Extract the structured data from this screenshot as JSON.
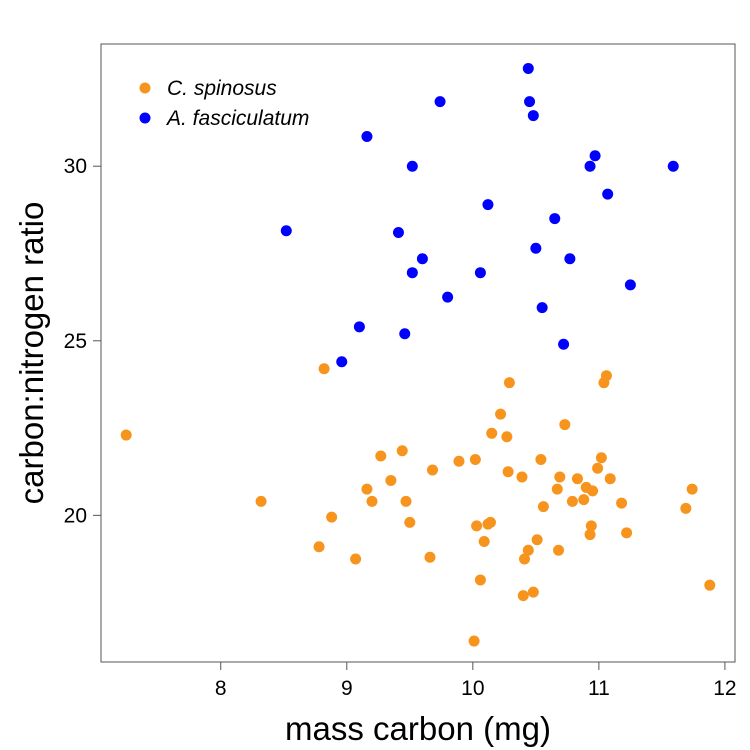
{
  "chart_data": {
    "type": "scatter",
    "title": "",
    "xlabel": "mass carbon (mg)",
    "ylabel": "carbon:nitrogen ratio",
    "xlim": [
      7.05,
      12.08
    ],
    "ylim": [
      15.8,
      33.5
    ],
    "xticks": [
      8,
      9,
      10,
      11,
      12
    ],
    "yticks": [
      20,
      25,
      30
    ],
    "grid": false,
    "legend_position": "top-left",
    "series": [
      {
        "name": "C. spinosus",
        "color": "#F7941D",
        "points": [
          [
            7.25,
            22.3
          ],
          [
            8.32,
            20.4
          ],
          [
            8.78,
            19.1
          ],
          [
            8.82,
            24.2
          ],
          [
            8.88,
            19.95
          ],
          [
            9.07,
            18.75
          ],
          [
            9.16,
            20.75
          ],
          [
            9.2,
            20.4
          ],
          [
            9.27,
            21.7
          ],
          [
            9.35,
            21.0
          ],
          [
            9.44,
            21.85
          ],
          [
            9.47,
            20.4
          ],
          [
            9.5,
            19.8
          ],
          [
            9.66,
            18.8
          ],
          [
            9.68,
            21.3
          ],
          [
            9.89,
            21.55
          ],
          [
            10.01,
            16.4
          ],
          [
            10.02,
            21.6
          ],
          [
            10.03,
            19.7
          ],
          [
            10.06,
            18.15
          ],
          [
            10.09,
            19.25
          ],
          [
            10.12,
            19.75
          ],
          [
            10.14,
            19.8
          ],
          [
            10.15,
            22.35
          ],
          [
            10.22,
            22.9
          ],
          [
            10.27,
            22.25
          ],
          [
            10.28,
            21.25
          ],
          [
            10.29,
            23.8
          ],
          [
            10.39,
            21.1
          ],
          [
            10.4,
            17.7
          ],
          [
            10.41,
            18.75
          ],
          [
            10.44,
            19.0
          ],
          [
            10.48,
            17.8
          ],
          [
            10.51,
            19.3
          ],
          [
            10.54,
            21.6
          ],
          [
            10.56,
            20.25
          ],
          [
            10.67,
            20.75
          ],
          [
            10.68,
            19.0
          ],
          [
            10.69,
            21.1
          ],
          [
            10.73,
            22.6
          ],
          [
            10.79,
            20.4
          ],
          [
            10.83,
            21.05
          ],
          [
            10.88,
            20.45
          ],
          [
            10.9,
            20.8
          ],
          [
            10.93,
            19.45
          ],
          [
            10.94,
            19.7
          ],
          [
            10.95,
            20.7
          ],
          [
            10.99,
            21.35
          ],
          [
            11.02,
            21.65
          ],
          [
            11.04,
            23.8
          ],
          [
            11.06,
            24.0
          ],
          [
            11.09,
            21.05
          ],
          [
            11.18,
            20.35
          ],
          [
            11.22,
            19.5
          ],
          [
            11.69,
            20.2
          ],
          [
            11.74,
            20.75
          ],
          [
            11.88,
            18.0
          ]
        ]
      },
      {
        "name": "A. fasciculatum",
        "color": "#0000FF",
        "points": [
          [
            8.52,
            28.15
          ],
          [
            8.96,
            24.4
          ],
          [
            9.1,
            25.4
          ],
          [
            9.16,
            30.85
          ],
          [
            9.41,
            28.1
          ],
          [
            9.46,
            25.2
          ],
          [
            9.52,
            26.95
          ],
          [
            9.52,
            30.0
          ],
          [
            9.6,
            27.35
          ],
          [
            9.74,
            31.85
          ],
          [
            9.8,
            26.25
          ],
          [
            10.06,
            26.95
          ],
          [
            10.12,
            28.9
          ],
          [
            10.44,
            32.8
          ],
          [
            10.45,
            31.85
          ],
          [
            10.48,
            31.45
          ],
          [
            10.5,
            27.65
          ],
          [
            10.55,
            25.95
          ],
          [
            10.65,
            28.5
          ],
          [
            10.72,
            24.9
          ],
          [
            10.77,
            27.35
          ],
          [
            10.93,
            30.0
          ],
          [
            10.97,
            30.3
          ],
          [
            11.07,
            29.2
          ],
          [
            11.25,
            26.6
          ],
          [
            11.59,
            30.0
          ]
        ]
      }
    ]
  }
}
